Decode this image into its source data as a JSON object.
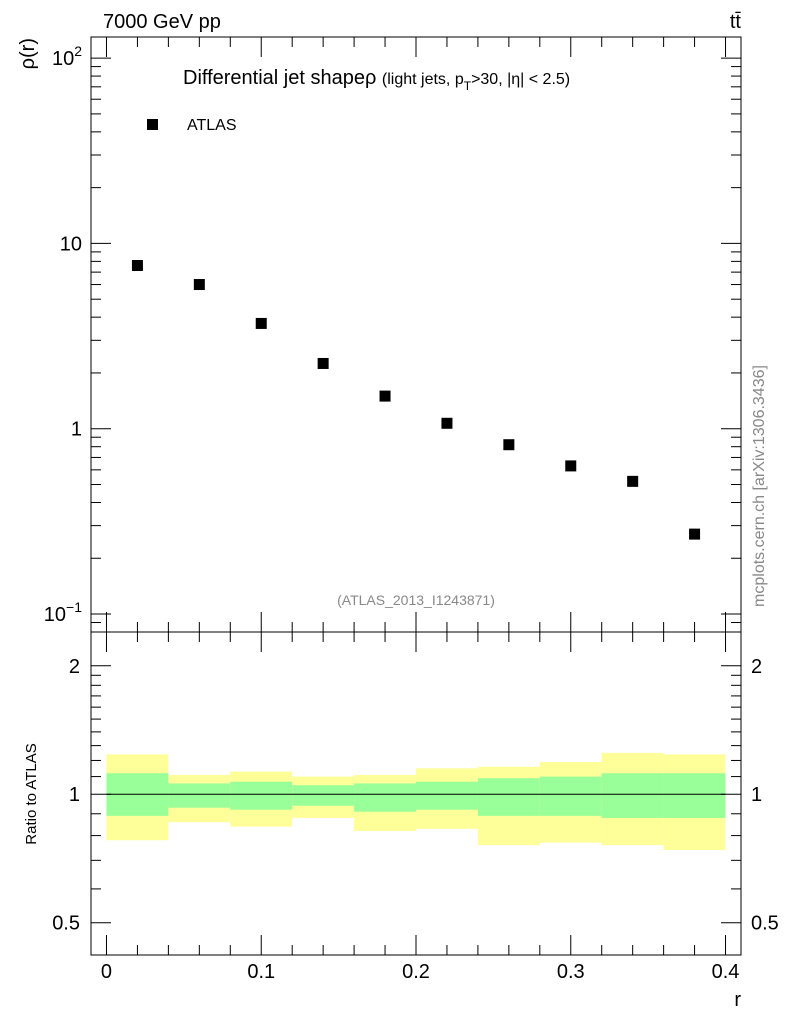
{
  "header": {
    "energy_label": "7000 GeV pp",
    "process_label": "tt̄",
    "side_label": "mcplots.cern.ch [arXiv:1306.3436]"
  },
  "chart_data": [
    {
      "type": "scatter",
      "title": "Differential jet shapeρ",
      "title_selection": "(light jets, p",
      "title_sub": "T",
      "title_selection_rest": ">30, |η| < 2.5)",
      "analysis_label": "(ATLAS_2013_I1243871)",
      "ylabel": "ρ(r)",
      "xlabel": "r",
      "yscale": "log",
      "xlim": [
        -0.01,
        0.41
      ],
      "ylim": [
        0.08,
        130
      ],
      "y_ticks": [
        {
          "value": 100,
          "label": "10",
          "exp": "2"
        },
        {
          "value": 10,
          "label": "10",
          "exp": ""
        },
        {
          "value": 1,
          "label": "1",
          "exp": ""
        },
        {
          "value": 0.1,
          "label": "10",
          "exp": "−1"
        }
      ],
      "legend": {
        "position": "top-left",
        "entries": [
          "ATLAS"
        ]
      },
      "series": [
        {
          "name": "ATLAS",
          "x": [
            0.02,
            0.06,
            0.1,
            0.14,
            0.18,
            0.22,
            0.26,
            0.3,
            0.34,
            0.38
          ],
          "y": [
            7.6,
            6.0,
            3.7,
            2.25,
            1.5,
            1.07,
            0.82,
            0.63,
            0.52,
            0.27
          ]
        }
      ]
    },
    {
      "type": "area",
      "ylabel": "Ratio to ATLAS",
      "xlabel": "r",
      "yscale": "log",
      "xlim": [
        -0.01,
        0.41
      ],
      "ylim": [
        0.42,
        2.4
      ],
      "x_ticks": [
        {
          "value": 0,
          "label": "0"
        },
        {
          "value": 0.1,
          "label": "0.1"
        },
        {
          "value": 0.2,
          "label": "0.2"
        },
        {
          "value": 0.3,
          "label": "0.3"
        },
        {
          "value": 0.4,
          "label": "0.4"
        }
      ],
      "y_ticks": [
        {
          "value": 2,
          "label": "2"
        },
        {
          "value": 1,
          "label": "1"
        },
        {
          "value": 0.5,
          "label": "0.5"
        }
      ],
      "bin_edges": [
        0.0,
        0.04,
        0.08,
        0.12,
        0.16,
        0.2,
        0.24,
        0.28,
        0.32,
        0.36,
        0.4
      ],
      "band_outer": {
        "color": "#ffff99",
        "low": [
          0.78,
          0.86,
          0.84,
          0.88,
          0.82,
          0.83,
          0.76,
          0.77,
          0.76,
          0.74
        ],
        "high": [
          1.24,
          1.11,
          1.13,
          1.1,
          1.11,
          1.15,
          1.16,
          1.19,
          1.25,
          1.24
        ]
      },
      "band_inner": {
        "color": "#99ff99",
        "low": [
          0.89,
          0.93,
          0.92,
          0.94,
          0.91,
          0.92,
          0.89,
          0.89,
          0.88,
          0.88
        ],
        "high": [
          1.12,
          1.06,
          1.07,
          1.05,
          1.06,
          1.07,
          1.09,
          1.1,
          1.12,
          1.12
        ]
      },
      "reference_line": 1
    }
  ]
}
